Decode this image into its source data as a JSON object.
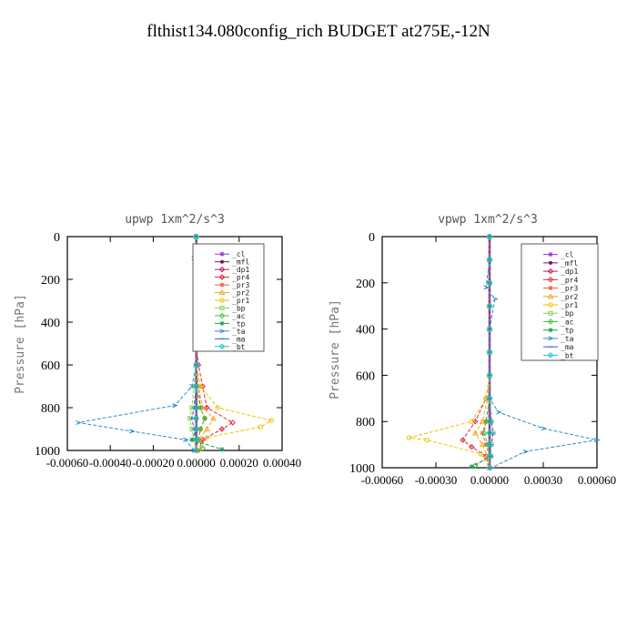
{
  "page_title": "flthist134.080config_rich  BUDGET at275E,-12N",
  "legend_entries": [
    {
      "label": "_cl",
      "color": "#9b30d9",
      "marker": "star"
    },
    {
      "label": "_mfl",
      "color": "#7a0e73",
      "marker": "dot"
    },
    {
      "label": "_dp1",
      "color": "#c0175a",
      "marker": "diamond"
    },
    {
      "label": "_pr4",
      "color": "#e0233a",
      "marker": "diamond"
    },
    {
      "label": "_pr3",
      "color": "#ef5a3c",
      "marker": "star"
    },
    {
      "label": "_pr2",
      "color": "#f5a623",
      "marker": "triangle"
    },
    {
      "label": "_pr1",
      "color": "#f2c200",
      "marker": "circle"
    },
    {
      "label": "_bp",
      "color": "#8fd14f",
      "marker": "square"
    },
    {
      "label": "_ac",
      "color": "#3cc43c",
      "marker": "diamond"
    },
    {
      "label": "_tp",
      "color": "#1e9e52",
      "marker": "star"
    },
    {
      "label": "_ta",
      "color": "#2b8fc9",
      "marker": "arrow"
    },
    {
      "label": "_ma",
      "color": "#3355dd",
      "marker": "line"
    },
    {
      "label": "_bt",
      "color": "#16c7d6",
      "marker": "diamond"
    }
  ],
  "chart_data": [
    {
      "type": "line",
      "title": "upwp   1xm^2/s^3",
      "ylabel": "Pressure [hPa]",
      "xlabel": "",
      "xlim": [
        -0.0006,
        0.0004
      ],
      "ylim": [
        1000,
        0
      ],
      "xticks": [
        -0.0006,
        -0.0004,
        -0.0002,
        0.0,
        0.0002,
        0.0004
      ],
      "xtick_labels": [
        "-0.00060",
        "-0.00040",
        "-0.00020",
        "0.00000",
        "0.00020",
        "0.00040"
      ],
      "yticks": [
        0,
        200,
        400,
        600,
        800,
        1000
      ],
      "ytick_labels": [
        "0",
        "200",
        "400",
        "600",
        "800",
        "1000"
      ],
      "legend_position": "top-right",
      "series": [
        {
          "name": "_cl",
          "color": "#9b30d9",
          "x": [
            0,
            0,
            0,
            0,
            0,
            0,
            0,
            0,
            0,
            0,
            0,
            0,
            0
          ],
          "y": [
            0,
            100,
            200,
            300,
            400,
            500,
            600,
            700,
            800,
            850,
            900,
            950,
            1000
          ]
        },
        {
          "name": "_mfl",
          "color": "#7a0e73",
          "x": [
            0,
            0,
            0,
            0,
            0,
            0,
            0,
            0,
            0,
            0,
            0,
            0,
            0
          ],
          "y": [
            0,
            100,
            200,
            300,
            400,
            500,
            600,
            700,
            800,
            850,
            900,
            950,
            1000
          ]
        },
        {
          "name": "_dp1",
          "color": "#c0175a",
          "x": [
            0,
            0,
            0,
            0,
            0,
            0,
            0,
            0,
            0,
            0,
            0,
            0,
            0
          ],
          "y": [
            0,
            100,
            200,
            300,
            400,
            500,
            600,
            700,
            800,
            850,
            900,
            950,
            1000
          ]
        },
        {
          "name": "_pr4",
          "color": "#e0233a",
          "x": [
            0,
            0,
            0,
            0,
            0,
            0,
            1e-05,
            3e-05,
            5e-05,
            0.00017,
            0.00012,
            3e-05,
            1e-05
          ],
          "y": [
            0,
            100,
            200,
            300,
            400,
            500,
            600,
            700,
            800,
            870,
            900,
            950,
            1000
          ]
        },
        {
          "name": "_pr3",
          "color": "#ef5a3c",
          "x": [
            0,
            0,
            0,
            0,
            0,
            0,
            0,
            1e-05,
            2e-05,
            4e-05,
            2e-05,
            1e-05,
            0
          ],
          "y": [
            0,
            100,
            200,
            300,
            400,
            500,
            600,
            700,
            800,
            850,
            900,
            950,
            1000
          ]
        },
        {
          "name": "_pr2",
          "color": "#f5a623",
          "x": [
            0,
            0,
            0,
            0,
            0,
            0,
            0,
            1e-05,
            3e-05,
            8e-05,
            5e-05,
            1e-05,
            0
          ],
          "y": [
            0,
            100,
            200,
            300,
            400,
            500,
            600,
            700,
            800,
            850,
            900,
            950,
            1000
          ]
        },
        {
          "name": "_pr1",
          "color": "#f2c200",
          "x": [
            0,
            0,
            0,
            0,
            0,
            0,
            0,
            2e-05,
            0.0001,
            0.00035,
            0.0003,
            5e-05,
            1e-05
          ],
          "y": [
            0,
            100,
            200,
            300,
            400,
            500,
            600,
            700,
            800,
            860,
            890,
            940,
            1000
          ]
        },
        {
          "name": "_bp",
          "color": "#8fd14f",
          "x": [
            0,
            0,
            0,
            0,
            0,
            0,
            0,
            -1e-05,
            -2e-05,
            -3e-05,
            -2e-05,
            -1e-05,
            0
          ],
          "y": [
            0,
            100,
            200,
            300,
            400,
            500,
            600,
            700,
            800,
            850,
            900,
            950,
            1000
          ]
        },
        {
          "name": "_ac",
          "color": "#3cc43c",
          "x": [
            0,
            0,
            0,
            0,
            0,
            0,
            0,
            0,
            2e-05,
            4e-05,
            2e-05,
            1e-05,
            3e-05
          ],
          "y": [
            0,
            100,
            200,
            300,
            400,
            500,
            600,
            700,
            800,
            850,
            900,
            950,
            990
          ]
        },
        {
          "name": "_tp",
          "color": "#1e9e52",
          "x": [
            0,
            0,
            0,
            0,
            0,
            0,
            0,
            0,
            0,
            0,
            0,
            -2e-05,
            0.00012
          ],
          "y": [
            0,
            100,
            200,
            300,
            400,
            500,
            600,
            700,
            800,
            850,
            900,
            950,
            995
          ]
        },
        {
          "name": "_ta",
          "color": "#2b8fc9",
          "x": [
            0,
            -1e-05,
            0,
            0,
            0,
            0,
            0,
            -2e-05,
            -0.0001,
            -0.00055,
            -0.0003,
            -5e-05,
            -1e-05
          ],
          "y": [
            0,
            100,
            220,
            300,
            400,
            500,
            600,
            700,
            790,
            870,
            910,
            950,
            1000
          ]
        },
        {
          "name": "_ma",
          "color": "#3355dd",
          "x": [
            0,
            0,
            0,
            0,
            0,
            0,
            0,
            0,
            -1e-05,
            -2e-05,
            -1e-05,
            0,
            0
          ],
          "y": [
            0,
            100,
            200,
            300,
            400,
            500,
            600,
            700,
            800,
            850,
            900,
            950,
            1000
          ]
        },
        {
          "name": "_bt",
          "color": "#16c7d6",
          "x": [
            0,
            0,
            0,
            0,
            0,
            0,
            0,
            0,
            0,
            0,
            0,
            0,
            0
          ],
          "y": [
            0,
            100,
            200,
            300,
            400,
            500,
            600,
            700,
            800,
            850,
            900,
            950,
            1000
          ]
        }
      ]
    },
    {
      "type": "line",
      "title": "vpwp   1xm^2/s^3",
      "ylabel": "Pressure [hPa]",
      "xlabel": "",
      "xlim": [
        -0.0006,
        0.0006
      ],
      "ylim": [
        1000,
        0
      ],
      "xticks": [
        -0.0006,
        -0.0003,
        0.0,
        0.0003,
        0.0006
      ],
      "xtick_labels": [
        "-0.00060",
        "-0.00030",
        "0.00000",
        "0.00030",
        "0.00060"
      ],
      "yticks": [
        0,
        200,
        400,
        600,
        800,
        1000
      ],
      "ytick_labels": [
        "0",
        "200",
        "400",
        "600",
        "800",
        "1000"
      ],
      "legend_position": "top-right",
      "series": [
        {
          "name": "_cl",
          "color": "#9b30d9",
          "x": [
            0,
            0,
            0,
            0,
            0,
            0,
            0,
            0,
            0,
            0,
            0,
            0,
            0
          ],
          "y": [
            0,
            100,
            200,
            300,
            400,
            500,
            600,
            700,
            800,
            850,
            900,
            950,
            1000
          ]
        },
        {
          "name": "_mfl",
          "color": "#7a0e73",
          "x": [
            0,
            0,
            0,
            0,
            0,
            0,
            0,
            0,
            0,
            0,
            0,
            0,
            0
          ],
          "y": [
            0,
            100,
            200,
            300,
            400,
            500,
            600,
            700,
            800,
            850,
            900,
            950,
            1000
          ]
        },
        {
          "name": "_dp1",
          "color": "#c0175a",
          "x": [
            0,
            0,
            0,
            0,
            0,
            0,
            0,
            0,
            0,
            0,
            0,
            0,
            0
          ],
          "y": [
            0,
            100,
            200,
            300,
            400,
            500,
            600,
            700,
            800,
            850,
            900,
            950,
            1000
          ]
        },
        {
          "name": "_pr4",
          "color": "#e0233a",
          "x": [
            0,
            0,
            0,
            0,
            0,
            0,
            0,
            -2e-05,
            -8e-05,
            -0.00015,
            -0.0001,
            -2e-05,
            0
          ],
          "y": [
            0,
            100,
            200,
            300,
            400,
            500,
            600,
            700,
            800,
            880,
            910,
            950,
            1000
          ]
        },
        {
          "name": "_pr3",
          "color": "#ef5a3c",
          "x": [
            0,
            0,
            0,
            0,
            0,
            0,
            0,
            0,
            -2e-05,
            -4e-05,
            -2e-05,
            0,
            0
          ],
          "y": [
            0,
            100,
            200,
            300,
            400,
            500,
            600,
            700,
            800,
            850,
            900,
            950,
            1000
          ]
        },
        {
          "name": "_pr2",
          "color": "#f5a623",
          "x": [
            0,
            0,
            0,
            0,
            0,
            0,
            0,
            -1e-05,
            -4e-05,
            -8e-05,
            -4e-05,
            -1e-05,
            0
          ],
          "y": [
            0,
            100,
            200,
            300,
            400,
            500,
            600,
            700,
            800,
            850,
            900,
            950,
            1000
          ]
        },
        {
          "name": "_pr1",
          "color": "#f2c200",
          "x": [
            0,
            0,
            0,
            0,
            0,
            0,
            0,
            -2e-05,
            -0.0001,
            -0.00045,
            -0.00035,
            -5e-05,
            0
          ],
          "y": [
            0,
            100,
            200,
            300,
            400,
            500,
            600,
            700,
            800,
            870,
            880,
            940,
            1000
          ]
        },
        {
          "name": "_bp",
          "color": "#8fd14f",
          "x": [
            0,
            0,
            0,
            0,
            0,
            0,
            0,
            0,
            1e-05,
            2e-05,
            1e-05,
            0,
            0
          ],
          "y": [
            0,
            100,
            200,
            300,
            400,
            500,
            600,
            700,
            800,
            850,
            900,
            950,
            1000
          ]
        },
        {
          "name": "_ac",
          "color": "#3cc43c",
          "x": [
            0,
            0,
            0,
            0,
            0,
            0,
            0,
            0,
            -2e-05,
            -3e-05,
            -1e-05,
            0,
            -8e-05
          ],
          "y": [
            0,
            100,
            200,
            300,
            400,
            500,
            600,
            700,
            800,
            850,
            900,
            950,
            990
          ]
        },
        {
          "name": "_tp",
          "color": "#1e9e52",
          "x": [
            0,
            0,
            0,
            0,
            0,
            0,
            0,
            0,
            0,
            0,
            0,
            1e-05,
            -0.0001
          ],
          "y": [
            0,
            100,
            200,
            300,
            400,
            500,
            600,
            700,
            800,
            850,
            900,
            950,
            995
          ]
        },
        {
          "name": "_ta",
          "color": "#2b8fc9",
          "x": [
            0,
            0,
            -2e-05,
            3e-05,
            0,
            0,
            0,
            0,
            5e-05,
            0.0003,
            0.0006,
            0.0002,
            1e-05
          ],
          "y": [
            0,
            100,
            220,
            270,
            400,
            500,
            600,
            700,
            760,
            830,
            880,
            930,
            1000
          ]
        },
        {
          "name": "_ma",
          "color": "#3355dd",
          "x": [
            0,
            0,
            0,
            0,
            0,
            0,
            0,
            0,
            1e-05,
            2e-05,
            1e-05,
            0,
            0
          ],
          "y": [
            0,
            100,
            200,
            300,
            400,
            500,
            600,
            700,
            800,
            850,
            900,
            950,
            1000
          ]
        },
        {
          "name": "_bt",
          "color": "#16c7d6",
          "x": [
            0,
            0,
            0,
            0,
            0,
            0,
            0,
            0,
            0,
            0,
            0,
            0,
            0
          ],
          "y": [
            0,
            100,
            200,
            300,
            400,
            500,
            600,
            700,
            800,
            850,
            900,
            950,
            1000
          ]
        }
      ]
    }
  ]
}
